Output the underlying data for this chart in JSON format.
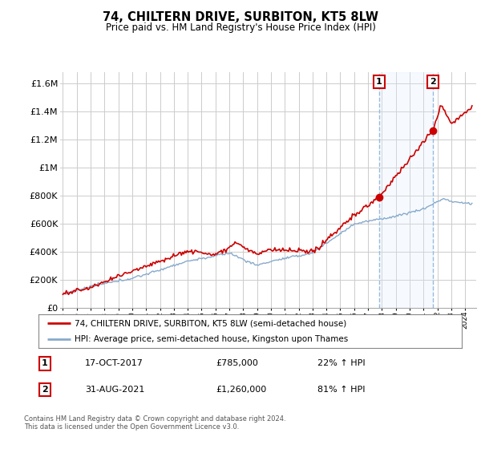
{
  "title": "74, CHILTERN DRIVE, SURBITON, KT5 8LW",
  "subtitle": "Price paid vs. HM Land Registry's House Price Index (HPI)",
  "ylabel_ticks": [
    "£0",
    "£200K",
    "£400K",
    "£600K",
    "£800K",
    "£1M",
    "£1.2M",
    "£1.4M",
    "£1.6M"
  ],
  "ytick_values": [
    0,
    200000,
    400000,
    600000,
    800000,
    1000000,
    1200000,
    1400000,
    1600000
  ],
  "ylim": [
    0,
    1680000
  ],
  "xlim_start": 1994.8,
  "xlim_end": 2024.8,
  "sale1_x": 2017.8,
  "sale1_y": 785000,
  "sale2_x": 2021.67,
  "sale2_y": 1260000,
  "red_color": "#cc0000",
  "blue_color": "#88aacc",
  "dashed_color": "#99bbdd",
  "shade_color": "#ddeeff",
  "legend_line1": "74, CHILTERN DRIVE, SURBITON, KT5 8LW (semi-detached house)",
  "legend_line2": "HPI: Average price, semi-detached house, Kingston upon Thames",
  "note1_date": "17-OCT-2017",
  "note1_price": "£785,000",
  "note1_hpi": "22% ↑ HPI",
  "note2_date": "31-AUG-2021",
  "note2_price": "£1,260,000",
  "note2_hpi": "81% ↑ HPI",
  "footer": "Contains HM Land Registry data © Crown copyright and database right 2024.\nThis data is licensed under the Open Government Licence v3.0.",
  "background_color": "#ffffff",
  "grid_color": "#cccccc"
}
